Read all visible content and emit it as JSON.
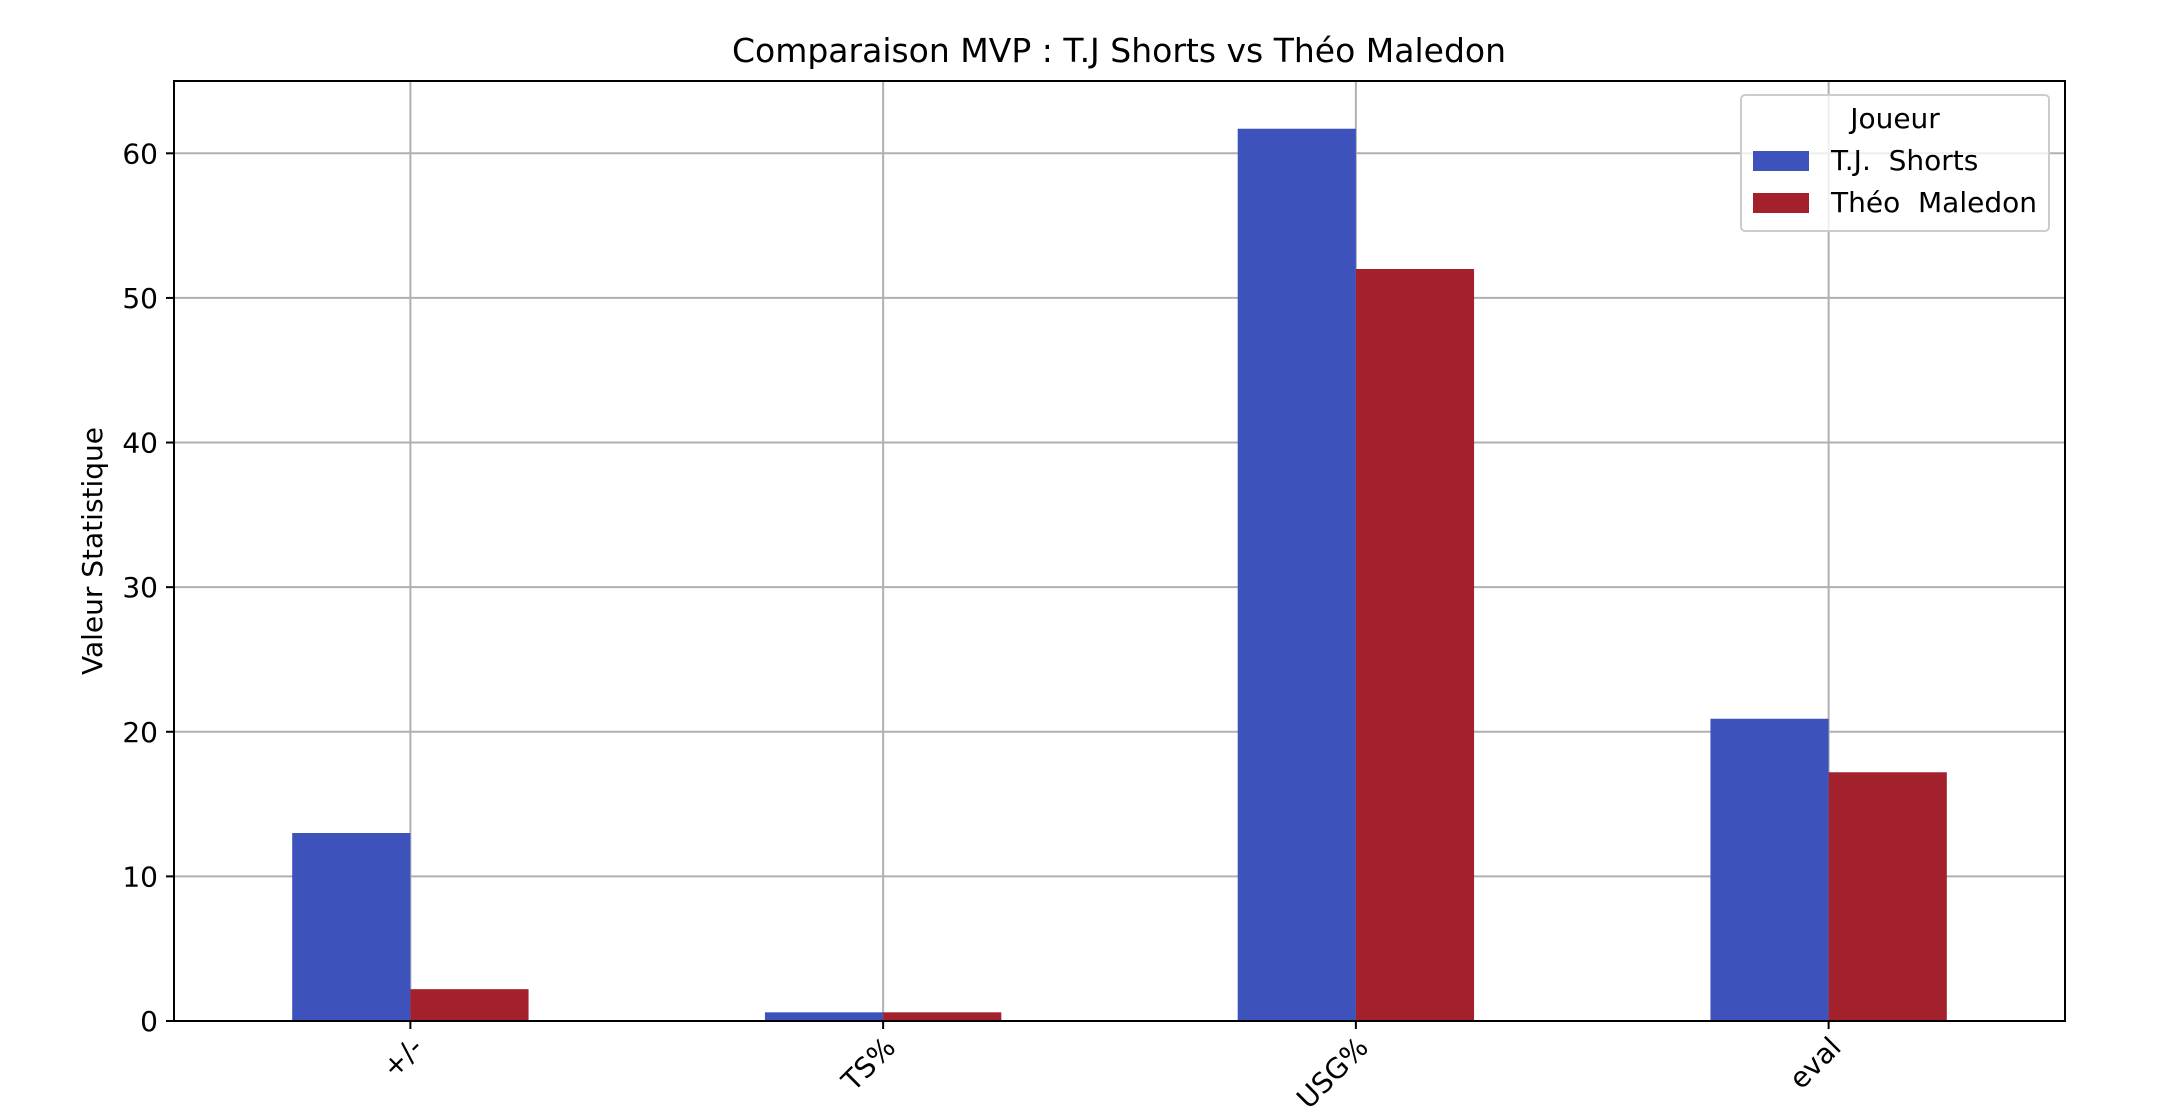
{
  "chart_data": {
    "type": "bar",
    "title": "Comparaison MVP : T.J Shorts vs Théo Maledon",
    "xlabel": "",
    "ylabel": "Valeur Statistique",
    "categories": [
      "+/-",
      "TS%",
      "USG%",
      "eval"
    ],
    "series": [
      {
        "name": "T.J.  Shorts",
        "color": "#3d52bb",
        "values": [
          13.0,
          0.6,
          61.7,
          20.9
        ]
      },
      {
        "name": "Théo  Maledon",
        "color": "#a3202d",
        "values": [
          2.2,
          0.6,
          52.0,
          17.2
        ]
      }
    ],
    "ylim": [
      0,
      65
    ],
    "yticks": [
      0,
      10,
      20,
      30,
      40,
      50,
      60
    ],
    "grid": true,
    "legend": {
      "title": "Joueur",
      "position": "top-right"
    }
  }
}
